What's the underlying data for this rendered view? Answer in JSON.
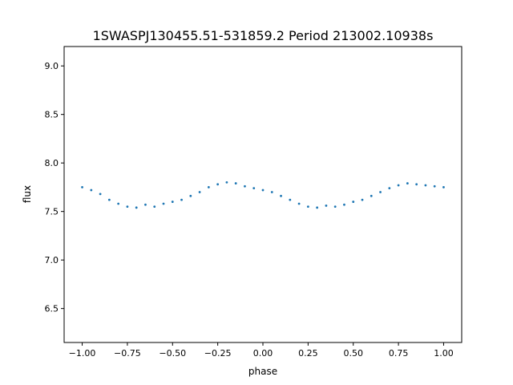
{
  "chart_data": {
    "type": "scatter",
    "title": "1SWASPJ130455.51-531859.2 Period 213002.10938s",
    "xlabel": "phase",
    "ylabel": "flux",
    "xlim": [
      -1.1,
      1.1
    ],
    "ylim": [
      6.15,
      9.2
    ],
    "xticks": [
      -1.0,
      -0.75,
      -0.5,
      -0.25,
      0.0,
      0.25,
      0.5,
      0.75,
      1.0
    ],
    "xtick_labels": [
      "−1.00",
      "−0.75",
      "−0.50",
      "−0.25",
      "0.00",
      "0.25",
      "0.50",
      "0.75",
      "1.00"
    ],
    "yticks": [
      6.5,
      7.0,
      7.5,
      8.0,
      8.5,
      9.0
    ],
    "ytick_labels": [
      "6.5",
      "7.0",
      "7.5",
      "8.0",
      "8.5",
      "9.0"
    ],
    "grid": false,
    "marker_color": "#1f77b4",
    "series": [
      {
        "x": [
          -1.0,
          -0.95,
          -0.9,
          -0.85,
          -0.8,
          -0.75,
          -0.7,
          -0.65,
          -0.6,
          -0.55,
          -0.5,
          -0.45,
          -0.4,
          -0.35,
          -0.3,
          -0.25,
          -0.2,
          -0.15,
          -0.1,
          -0.05,
          0.0,
          0.05,
          0.1,
          0.15,
          0.2,
          0.25,
          0.3,
          0.35,
          0.4,
          0.45,
          0.5,
          0.55,
          0.6,
          0.65,
          0.7,
          0.75,
          0.8,
          0.85,
          0.9,
          0.95,
          1.0
        ],
        "y": [
          7.75,
          7.72,
          7.68,
          7.62,
          7.58,
          7.55,
          7.54,
          7.57,
          7.55,
          7.58,
          7.6,
          7.62,
          7.66,
          7.7,
          7.75,
          7.78,
          7.8,
          7.79,
          7.76,
          7.74,
          7.72,
          7.7,
          7.66,
          7.62,
          7.58,
          7.55,
          7.54,
          7.56,
          7.55,
          7.57,
          7.6,
          7.62,
          7.66,
          7.7,
          7.74,
          7.77,
          7.79,
          7.78,
          7.77,
          7.76,
          7.75
        ]
      }
    ]
  }
}
